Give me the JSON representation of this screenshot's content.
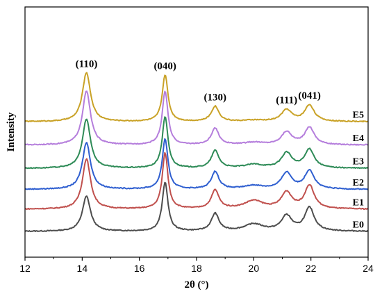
{
  "chart_data": {
    "type": "line",
    "title": "",
    "xlabel": "2θ (°)",
    "ylabel": "Intensity",
    "xlim": [
      12,
      24
    ],
    "x_ticks": [
      "12",
      "14",
      "16",
      "18",
      "20",
      "22",
      "24"
    ],
    "y_ticks_shown": false,
    "grid": false,
    "peak_annotations": [
      {
        "label": "(110)",
        "x": 14.15
      },
      {
        "label": "(040)",
        "x": 16.9
      },
      {
        "label": "(130)",
        "x": 18.65
      },
      {
        "label": "(111)",
        "x": 21.15
      },
      {
        "label": "(041)",
        "x": 21.95
      }
    ],
    "series": [
      {
        "name": "E0",
        "color": "#4d4d4d",
        "offset": 0.0,
        "peaks": [
          [
            14.15,
            0.3,
            0.17
          ],
          [
            16.9,
            0.42,
            0.12
          ],
          [
            18.65,
            0.15,
            0.16
          ],
          [
            20.0,
            0.06,
            0.4
          ],
          [
            21.15,
            0.13,
            0.22
          ],
          [
            21.95,
            0.2,
            0.2
          ]
        ]
      },
      {
        "name": "E1",
        "color": "#c0504d",
        "offset": 0.19,
        "peaks": [
          [
            14.15,
            0.43,
            0.17
          ],
          [
            16.9,
            0.48,
            0.12
          ],
          [
            18.65,
            0.16,
            0.16
          ],
          [
            20.0,
            0.07,
            0.4
          ],
          [
            21.15,
            0.14,
            0.22
          ],
          [
            21.95,
            0.2,
            0.2
          ]
        ]
      },
      {
        "name": "E2",
        "color": "#2f5fd0",
        "offset": 0.36,
        "peaks": [
          [
            14.15,
            0.4,
            0.17
          ],
          [
            16.9,
            0.43,
            0.12
          ],
          [
            18.65,
            0.15,
            0.16
          ],
          [
            20.0,
            0.03,
            0.4
          ],
          [
            21.15,
            0.14,
            0.22
          ],
          [
            21.95,
            0.16,
            0.2
          ]
        ]
      },
      {
        "name": "E3",
        "color": "#2e8b57",
        "offset": 0.54,
        "peaks": [
          [
            14.15,
            0.42,
            0.17
          ],
          [
            16.9,
            0.44,
            0.12
          ],
          [
            18.65,
            0.15,
            0.16
          ],
          [
            20.0,
            0.03,
            0.4
          ],
          [
            21.15,
            0.13,
            0.22
          ],
          [
            21.95,
            0.16,
            0.2
          ]
        ]
      },
      {
        "name": "E4",
        "color": "#b57edc",
        "offset": 0.74,
        "peaks": [
          [
            14.15,
            0.46,
            0.17
          ],
          [
            16.9,
            0.46,
            0.12
          ],
          [
            18.65,
            0.14,
            0.16
          ],
          [
            20.0,
            0.02,
            0.4
          ],
          [
            21.15,
            0.11,
            0.22
          ],
          [
            21.95,
            0.15,
            0.2
          ]
        ]
      },
      {
        "name": "E5",
        "color": "#c9a227",
        "offset": 0.94,
        "peaks": [
          [
            14.15,
            0.42,
            0.17
          ],
          [
            16.9,
            0.4,
            0.12
          ],
          [
            18.65,
            0.13,
            0.16
          ],
          [
            20.0,
            0.01,
            0.4
          ],
          [
            21.15,
            0.1,
            0.22
          ],
          [
            21.95,
            0.14,
            0.2
          ]
        ]
      }
    ]
  }
}
